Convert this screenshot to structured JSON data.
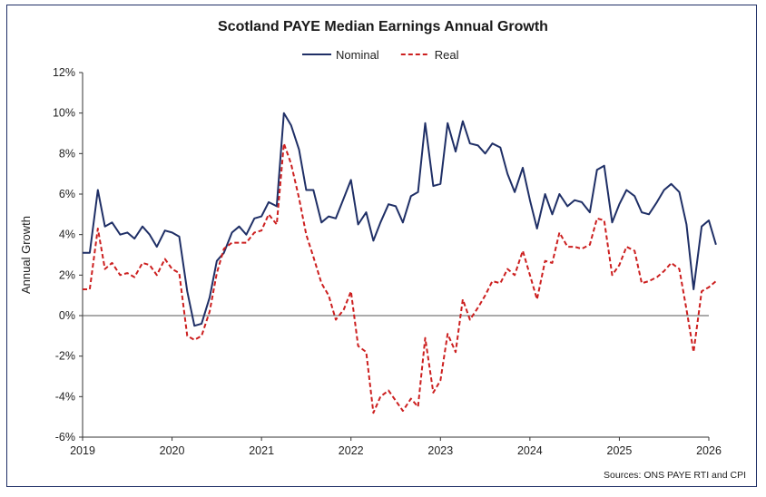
{
  "chart_data": {
    "type": "line",
    "title": "Scotland PAYE Median Earnings Annual Growth",
    "ylabel": "Annual Growth",
    "xlabel": "",
    "source": "Sources: ONS PAYE RTI and CPI",
    "ylim": [
      -6,
      12
    ],
    "yticks": [
      -6,
      -4,
      -2,
      0,
      2,
      4,
      6,
      8,
      10,
      12
    ],
    "ytick_labels": [
      "-6%",
      "-4%",
      "-2%",
      "0%",
      "2%",
      "4%",
      "6%",
      "8%",
      "10%",
      "12%"
    ],
    "xlim": [
      2019.0,
      2026.0
    ],
    "xticks": [
      2019,
      2020,
      2021,
      2022,
      2023,
      2024,
      2025,
      2026
    ],
    "xtick_labels": [
      "2019",
      "2020",
      "2021",
      "2022",
      "2023",
      "2024",
      "2025",
      "2026"
    ],
    "legend_position": "top-center",
    "grid": false,
    "zero_line": true,
    "series": [
      {
        "name": "Nominal",
        "color": "#1f2f66",
        "dash": "solid",
        "points": [
          [
            2019.0,
            3.1
          ],
          [
            2019.08,
            3.1
          ],
          [
            2019.17,
            6.2
          ],
          [
            2019.25,
            4.4
          ],
          [
            2019.33,
            4.6
          ],
          [
            2019.42,
            4.0
          ],
          [
            2019.5,
            4.1
          ],
          [
            2019.58,
            3.8
          ],
          [
            2019.67,
            4.4
          ],
          [
            2019.75,
            4.0
          ],
          [
            2019.83,
            3.4
          ],
          [
            2019.92,
            4.2
          ],
          [
            2020.0,
            4.1
          ],
          [
            2020.08,
            3.9
          ],
          [
            2020.17,
            1.2
          ],
          [
            2020.25,
            -0.5
          ],
          [
            2020.33,
            -0.4
          ],
          [
            2020.42,
            0.9
          ],
          [
            2020.5,
            2.7
          ],
          [
            2020.58,
            3.1
          ],
          [
            2020.67,
            4.1
          ],
          [
            2020.75,
            4.4
          ],
          [
            2020.83,
            4.0
          ],
          [
            2020.92,
            4.8
          ],
          [
            2021.0,
            4.9
          ],
          [
            2021.08,
            5.6
          ],
          [
            2021.17,
            5.4
          ],
          [
            2021.25,
            10.0
          ],
          [
            2021.33,
            9.4
          ],
          [
            2021.42,
            8.2
          ],
          [
            2021.5,
            6.2
          ],
          [
            2021.58,
            6.2
          ],
          [
            2021.67,
            4.6
          ],
          [
            2021.75,
            4.9
          ],
          [
            2021.83,
            4.8
          ],
          [
            2021.92,
            5.8
          ],
          [
            2022.0,
            6.7
          ],
          [
            2022.08,
            4.5
          ],
          [
            2022.17,
            5.1
          ],
          [
            2022.25,
            3.7
          ],
          [
            2022.33,
            4.6
          ],
          [
            2022.42,
            5.5
          ],
          [
            2022.5,
            5.4
          ],
          [
            2022.58,
            4.6
          ],
          [
            2022.67,
            5.9
          ],
          [
            2022.75,
            6.1
          ],
          [
            2022.83,
            9.5
          ],
          [
            2022.92,
            6.4
          ],
          [
            2023.0,
            6.5
          ],
          [
            2023.08,
            9.5
          ],
          [
            2023.17,
            8.1
          ],
          [
            2023.25,
            9.6
          ],
          [
            2023.33,
            8.5
          ],
          [
            2023.42,
            8.4
          ],
          [
            2023.5,
            8.0
          ],
          [
            2023.58,
            8.5
          ],
          [
            2023.67,
            8.3
          ],
          [
            2023.75,
            7.0
          ],
          [
            2023.83,
            6.1
          ],
          [
            2023.92,
            7.3
          ],
          [
            2024.0,
            5.7
          ],
          [
            2024.08,
            4.3
          ],
          [
            2024.17,
            6.0
          ],
          [
            2024.25,
            5.0
          ],
          [
            2024.33,
            6.0
          ],
          [
            2024.42,
            5.4
          ],
          [
            2024.5,
            5.7
          ],
          [
            2024.58,
            5.6
          ],
          [
            2024.67,
            5.1
          ],
          [
            2024.75,
            7.2
          ],
          [
            2024.83,
            7.4
          ],
          [
            2024.92,
            4.6
          ],
          [
            2025.0,
            5.5
          ],
          [
            2025.08,
            6.2
          ],
          [
            2025.17,
            5.9
          ],
          [
            2025.25,
            5.1
          ],
          [
            2025.33,
            5.0
          ],
          [
            2025.42,
            5.6
          ],
          [
            2025.5,
            6.2
          ],
          [
            2025.58,
            6.5
          ],
          [
            2025.67,
            6.1
          ],
          [
            2025.75,
            4.5
          ],
          [
            2025.83,
            1.3
          ],
          [
            2025.92,
            4.4
          ],
          [
            2026.0,
            4.7
          ],
          [
            2026.08,
            3.5
          ]
        ]
      },
      {
        "name": "Real",
        "color": "#cc1f1f",
        "dash": "dashed",
        "points": [
          [
            2019.0,
            1.3
          ],
          [
            2019.08,
            1.3
          ],
          [
            2019.17,
            4.3
          ],
          [
            2019.25,
            2.3
          ],
          [
            2019.33,
            2.6
          ],
          [
            2019.42,
            2.0
          ],
          [
            2019.5,
            2.1
          ],
          [
            2019.58,
            1.9
          ],
          [
            2019.67,
            2.6
          ],
          [
            2019.75,
            2.5
          ],
          [
            2019.83,
            2.0
          ],
          [
            2019.92,
            2.8
          ],
          [
            2020.0,
            2.3
          ],
          [
            2020.08,
            2.1
          ],
          [
            2020.17,
            -1.0
          ],
          [
            2020.25,
            -1.2
          ],
          [
            2020.33,
            -1.0
          ],
          [
            2020.42,
            0.2
          ],
          [
            2020.5,
            2.1
          ],
          [
            2020.58,
            3.3
          ],
          [
            2020.67,
            3.6
          ],
          [
            2020.75,
            3.6
          ],
          [
            2020.83,
            3.6
          ],
          [
            2020.92,
            4.1
          ],
          [
            2021.0,
            4.2
          ],
          [
            2021.08,
            5.0
          ],
          [
            2021.17,
            4.5
          ],
          [
            2021.25,
            8.5
          ],
          [
            2021.33,
            7.5
          ],
          [
            2021.42,
            5.8
          ],
          [
            2021.5,
            4.0
          ],
          [
            2021.58,
            2.9
          ],
          [
            2021.67,
            1.6
          ],
          [
            2021.75,
            1.0
          ],
          [
            2021.83,
            -0.2
          ],
          [
            2021.92,
            0.3
          ],
          [
            2022.0,
            1.2
          ],
          [
            2022.08,
            -1.5
          ],
          [
            2022.17,
            -1.8
          ],
          [
            2022.25,
            -4.8
          ],
          [
            2022.33,
            -4.0
          ],
          [
            2022.42,
            -3.7
          ],
          [
            2022.5,
            -4.2
          ],
          [
            2022.58,
            -4.7
          ],
          [
            2022.67,
            -4.1
          ],
          [
            2022.75,
            -4.5
          ],
          [
            2022.83,
            -1.1
          ],
          [
            2022.92,
            -3.8
          ],
          [
            2023.0,
            -3.2
          ],
          [
            2023.08,
            -0.9
          ],
          [
            2023.17,
            -1.8
          ],
          [
            2023.25,
            0.8
          ],
          [
            2023.33,
            -0.2
          ],
          [
            2023.42,
            0.4
          ],
          [
            2023.5,
            1.0
          ],
          [
            2023.58,
            1.7
          ],
          [
            2023.67,
            1.6
          ],
          [
            2023.75,
            2.3
          ],
          [
            2023.83,
            2.0
          ],
          [
            2023.92,
            3.2
          ],
          [
            2024.0,
            2.0
          ],
          [
            2024.08,
            0.8
          ],
          [
            2024.17,
            2.7
          ],
          [
            2024.25,
            2.6
          ],
          [
            2024.33,
            4.1
          ],
          [
            2024.42,
            3.4
          ],
          [
            2024.5,
            3.4
          ],
          [
            2024.58,
            3.3
          ],
          [
            2024.67,
            3.5
          ],
          [
            2024.75,
            4.8
          ],
          [
            2024.83,
            4.7
          ],
          [
            2024.92,
            2.0
          ],
          [
            2025.0,
            2.5
          ],
          [
            2025.08,
            3.4
          ],
          [
            2025.17,
            3.2
          ],
          [
            2025.25,
            1.6
          ],
          [
            2025.33,
            1.7
          ],
          [
            2025.42,
            1.9
          ],
          [
            2025.5,
            2.2
          ],
          [
            2025.58,
            2.6
          ],
          [
            2025.67,
            2.3
          ],
          [
            2025.75,
            0.3
          ],
          [
            2025.83,
            -1.8
          ],
          [
            2025.92,
            1.2
          ],
          [
            2026.0,
            1.4
          ],
          [
            2026.08,
            1.7
          ]
        ]
      }
    ]
  }
}
